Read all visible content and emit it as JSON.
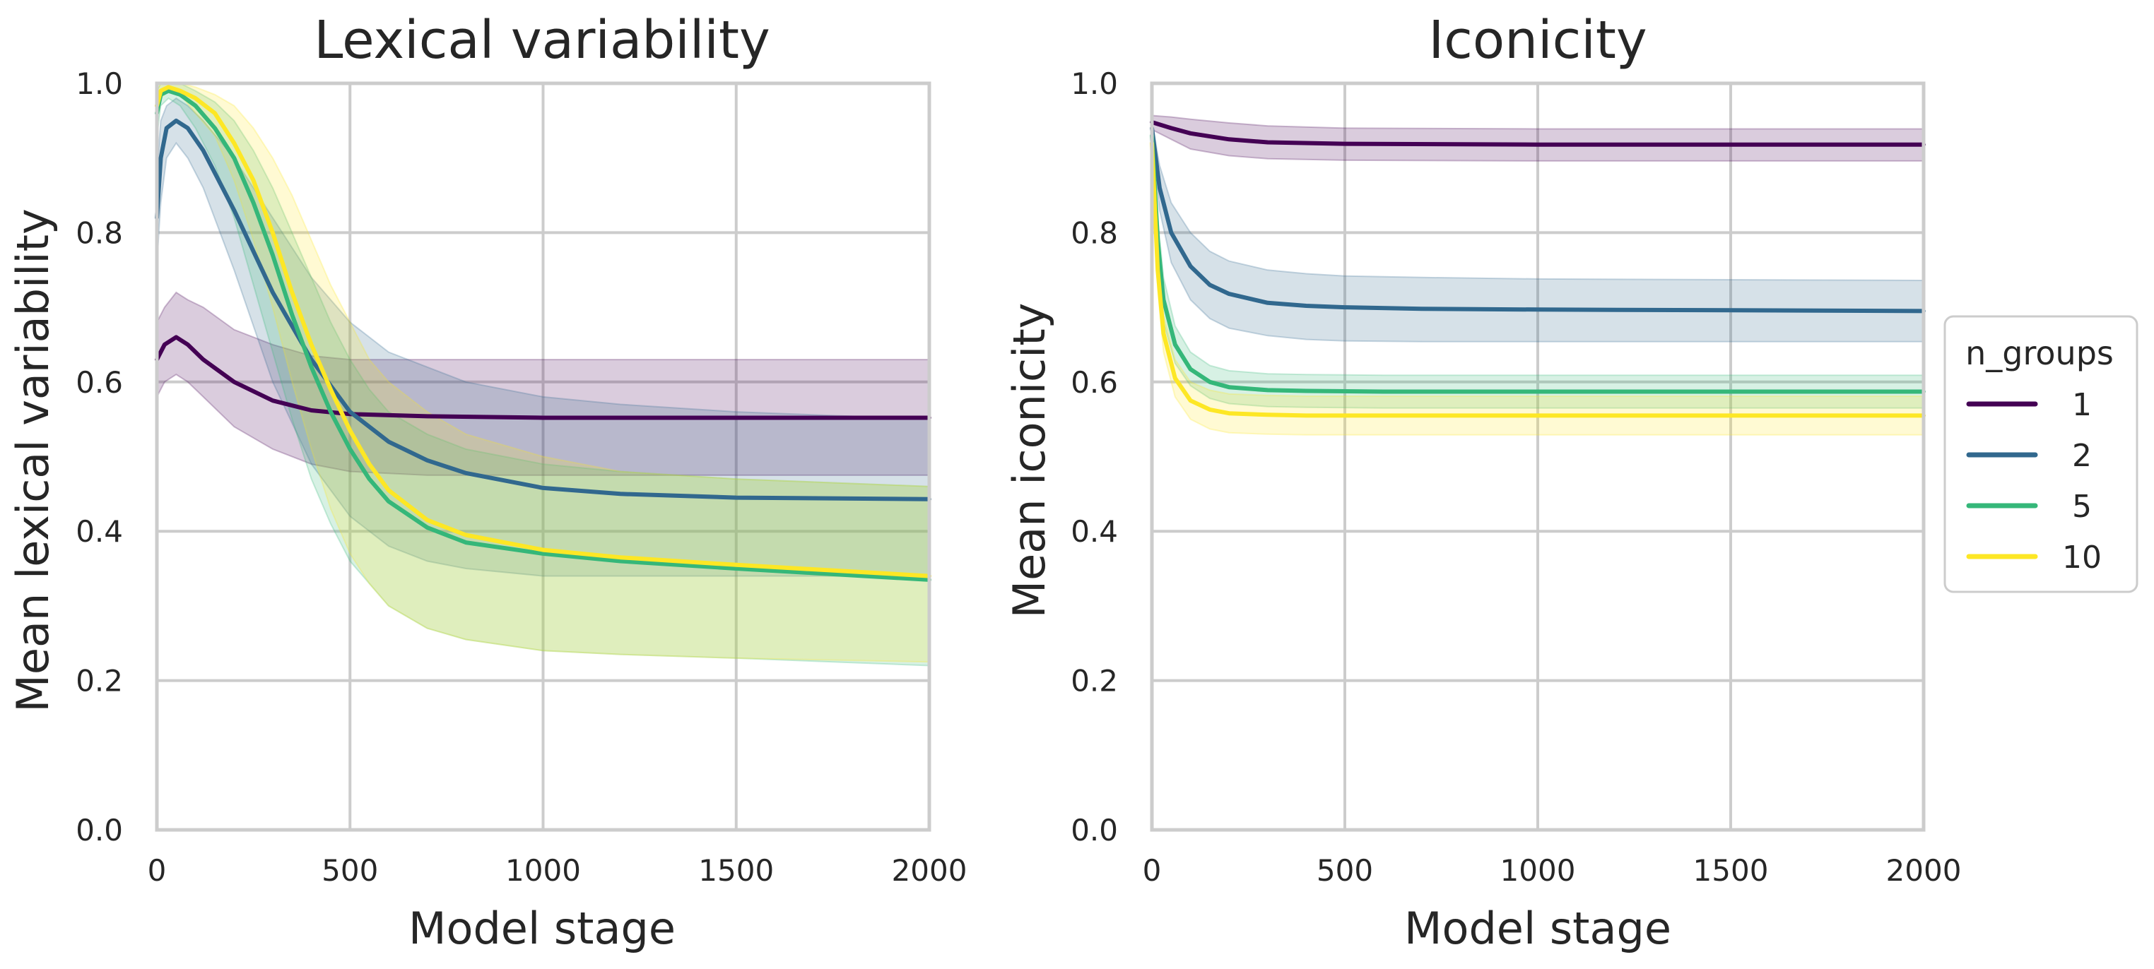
{
  "chart_data": [
    {
      "type": "line",
      "id": "left",
      "title": "Lexical variability",
      "xlabel": "Model stage",
      "ylabel": "Mean lexical variability",
      "xlim": [
        0,
        2000
      ],
      "ylim": [
        0,
        1
      ],
      "xticks": [
        "0",
        "500",
        "1000",
        "1500",
        "2000"
      ],
      "yticks": [
        "0.0",
        "0.2",
        "0.4",
        "0.6",
        "0.8",
        "1.0"
      ],
      "grid": true,
      "series": [
        {
          "name": "1",
          "x": [
            0,
            20,
            50,
            80,
            120,
            200,
            300,
            400,
            500,
            700,
            1000,
            1500,
            2000
          ],
          "y": [
            0.63,
            0.65,
            0.66,
            0.65,
            0.63,
            0.6,
            0.575,
            0.562,
            0.557,
            0.554,
            0.552,
            0.552,
            0.552
          ],
          "lower": [
            0.58,
            0.6,
            0.61,
            0.6,
            0.58,
            0.54,
            0.51,
            0.49,
            0.48,
            0.475,
            0.475,
            0.475,
            0.475
          ],
          "upper": [
            0.68,
            0.7,
            0.72,
            0.71,
            0.7,
            0.67,
            0.65,
            0.635,
            0.63,
            0.63,
            0.63,
            0.63,
            0.63
          ]
        },
        {
          "name": "2",
          "x": [
            0,
            10,
            25,
            50,
            80,
            120,
            200,
            300,
            400,
            500,
            600,
            700,
            800,
            1000,
            1200,
            1500,
            2000
          ],
          "y": [
            0.82,
            0.9,
            0.94,
            0.95,
            0.94,
            0.91,
            0.83,
            0.72,
            0.63,
            0.56,
            0.52,
            0.495,
            0.478,
            0.458,
            0.45,
            0.445,
            0.443
          ],
          "lower": [
            0.76,
            0.84,
            0.9,
            0.92,
            0.9,
            0.86,
            0.75,
            0.6,
            0.49,
            0.42,
            0.38,
            0.36,
            0.35,
            0.34,
            0.34,
            0.34,
            0.34
          ],
          "upper": [
            0.88,
            0.95,
            0.97,
            0.98,
            0.97,
            0.95,
            0.9,
            0.82,
            0.74,
            0.68,
            0.64,
            0.62,
            0.6,
            0.58,
            0.57,
            0.56,
            0.55
          ]
        },
        {
          "name": "5",
          "x": [
            0,
            10,
            30,
            60,
            100,
            150,
            200,
            250,
            300,
            350,
            400,
            450,
            500,
            550,
            600,
            700,
            800,
            1000,
            1200,
            1500,
            2000
          ],
          "y": [
            0.96,
            0.985,
            0.99,
            0.985,
            0.97,
            0.94,
            0.9,
            0.84,
            0.77,
            0.69,
            0.62,
            0.56,
            0.51,
            0.47,
            0.44,
            0.405,
            0.385,
            0.37,
            0.36,
            0.35,
            0.335
          ],
          "lower": [
            0.93,
            0.97,
            0.98,
            0.97,
            0.94,
            0.89,
            0.82,
            0.73,
            0.64,
            0.55,
            0.47,
            0.41,
            0.36,
            0.33,
            0.3,
            0.27,
            0.255,
            0.24,
            0.235,
            0.23,
            0.22
          ],
          "upper": [
            0.99,
            1.0,
            1.0,
            1.0,
            0.99,
            0.975,
            0.95,
            0.91,
            0.86,
            0.8,
            0.74,
            0.68,
            0.63,
            0.59,
            0.56,
            0.53,
            0.51,
            0.49,
            0.48,
            0.47,
            0.46
          ]
        },
        {
          "name": "10",
          "x": [
            0,
            10,
            30,
            60,
            100,
            150,
            200,
            250,
            300,
            350,
            400,
            450,
            500,
            550,
            600,
            700,
            800,
            1000,
            1200,
            1500,
            2000
          ],
          "y": [
            0.97,
            0.99,
            0.995,
            0.99,
            0.98,
            0.96,
            0.92,
            0.87,
            0.8,
            0.72,
            0.65,
            0.59,
            0.535,
            0.49,
            0.455,
            0.415,
            0.395,
            0.375,
            0.365,
            0.355,
            0.34
          ],
          "lower": [
            0.95,
            0.98,
            0.99,
            0.985,
            0.96,
            0.93,
            0.87,
            0.79,
            0.7,
            0.6,
            0.51,
            0.43,
            0.37,
            0.33,
            0.3,
            0.27,
            0.255,
            0.24,
            0.235,
            0.23,
            0.225
          ],
          "upper": [
            0.99,
            1.0,
            1.0,
            1.0,
            0.995,
            0.985,
            0.97,
            0.94,
            0.9,
            0.85,
            0.79,
            0.73,
            0.68,
            0.63,
            0.6,
            0.56,
            0.53,
            0.5,
            0.48,
            0.47,
            0.46
          ]
        }
      ]
    },
    {
      "type": "line",
      "id": "right",
      "title": "Iconicity",
      "xlabel": "Model stage",
      "ylabel": "Mean iconicity",
      "xlim": [
        0,
        2000
      ],
      "ylim": [
        0,
        1
      ],
      "xticks": [
        "0",
        "500",
        "1000",
        "1500",
        "2000"
      ],
      "yticks": [
        "0.0",
        "0.2",
        "0.4",
        "0.6",
        "0.8",
        "1.0"
      ],
      "grid": true,
      "series": [
        {
          "name": "1",
          "x": [
            0,
            50,
            100,
            200,
            300,
            500,
            1000,
            1500,
            2000
          ],
          "y": [
            0.948,
            0.94,
            0.933,
            0.925,
            0.921,
            0.919,
            0.918,
            0.918,
            0.918
          ],
          "lower": [
            0.938,
            0.925,
            0.912,
            0.903,
            0.899,
            0.897,
            0.896,
            0.896,
            0.896
          ],
          "upper": [
            0.957,
            0.955,
            0.952,
            0.947,
            0.943,
            0.94,
            0.939,
            0.939,
            0.939
          ]
        },
        {
          "name": "2",
          "x": [
            0,
            20,
            50,
            100,
            150,
            200,
            300,
            400,
            500,
            700,
            1000,
            1500,
            2000
          ],
          "y": [
            0.94,
            0.86,
            0.8,
            0.755,
            0.73,
            0.718,
            0.706,
            0.702,
            0.7,
            0.698,
            0.697,
            0.696,
            0.695
          ],
          "lower": [
            0.93,
            0.83,
            0.76,
            0.71,
            0.685,
            0.672,
            0.662,
            0.657,
            0.655,
            0.654,
            0.654,
            0.654,
            0.654
          ],
          "upper": [
            0.95,
            0.89,
            0.84,
            0.8,
            0.775,
            0.762,
            0.75,
            0.745,
            0.742,
            0.74,
            0.738,
            0.737,
            0.736
          ]
        },
        {
          "name": "5",
          "x": [
            0,
            15,
            30,
            60,
            100,
            150,
            200,
            300,
            400,
            600,
            1000,
            1500,
            2000
          ],
          "y": [
            0.93,
            0.79,
            0.71,
            0.65,
            0.617,
            0.6,
            0.593,
            0.589,
            0.588,
            0.587,
            0.587,
            0.587,
            0.587
          ],
          "lower": [
            0.92,
            0.76,
            0.68,
            0.625,
            0.595,
            0.578,
            0.571,
            0.567,
            0.566,
            0.565,
            0.565,
            0.565,
            0.565
          ],
          "upper": [
            0.94,
            0.82,
            0.74,
            0.675,
            0.64,
            0.622,
            0.615,
            0.611,
            0.61,
            0.609,
            0.609,
            0.609,
            0.609
          ]
        },
        {
          "name": "10",
          "x": [
            0,
            15,
            30,
            60,
            100,
            150,
            200,
            300,
            400,
            600,
            1000,
            1500,
            2000
          ],
          "y": [
            0.92,
            0.75,
            0.665,
            0.605,
            0.575,
            0.563,
            0.558,
            0.556,
            0.555,
            0.555,
            0.555,
            0.555,
            0.555
          ],
          "lower": [
            0.905,
            0.725,
            0.64,
            0.58,
            0.55,
            0.537,
            0.532,
            0.53,
            0.529,
            0.529,
            0.529,
            0.529,
            0.529
          ],
          "upper": [
            0.935,
            0.775,
            0.69,
            0.63,
            0.6,
            0.589,
            0.584,
            0.582,
            0.581,
            0.581,
            0.581,
            0.581,
            0.581
          ]
        }
      ]
    }
  ],
  "legend": {
    "title": "n_groups",
    "placement": "center-right",
    "items": [
      {
        "label": "1",
        "color": "#440154"
      },
      {
        "label": "2",
        "color": "#31688e"
      },
      {
        "label": "5",
        "color": "#35b779"
      },
      {
        "label": "10",
        "color": "#fde725"
      }
    ]
  }
}
